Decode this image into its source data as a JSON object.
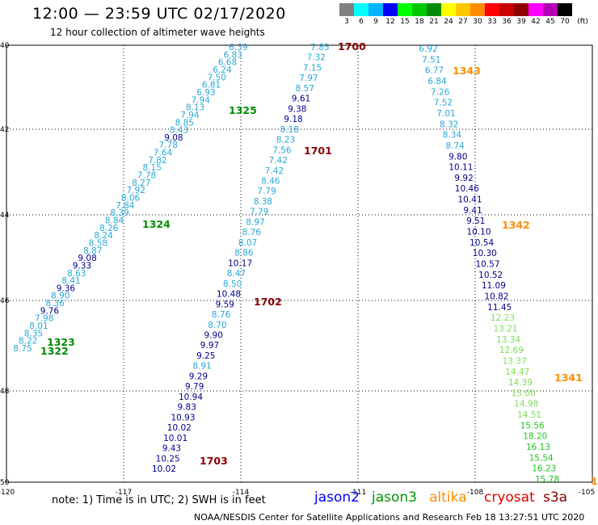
{
  "header": {
    "title": "12:00 — 23:59 UTC 02/17/2020",
    "subtitle": "12 hour collection of altimeter wave heights"
  },
  "legend": {
    "unit": "(ft)",
    "swatches": [
      {
        "label": "3",
        "color": "#808080"
      },
      {
        "label": "6",
        "color": "#00ffff"
      },
      {
        "label": "9",
        "color": "#00b4ff"
      },
      {
        "label": "12",
        "color": "#0000ff"
      },
      {
        "label": "15",
        "color": "#00ff00"
      },
      {
        "label": "18",
        "color": "#00c800"
      },
      {
        "label": "21",
        "color": "#008c00"
      },
      {
        "label": "24",
        "color": "#ffff00"
      },
      {
        "label": "27",
        "color": "#ffc800"
      },
      {
        "label": "30",
        "color": "#ff8c00"
      },
      {
        "label": "33",
        "color": "#ff0000"
      },
      {
        "label": "36",
        "color": "#c80000"
      },
      {
        "label": "39",
        "color": "#8c0000"
      },
      {
        "label": "42",
        "color": "#ff00ff"
      },
      {
        "label": "45",
        "color": "#b400b4"
      },
      {
        "label": "70",
        "color": "#000000"
      }
    ]
  },
  "map": {
    "lon_ticks": [
      "-120",
      "-117",
      "-114",
      "-111",
      "-108",
      "-105"
    ],
    "lat_ticks": [
      "40",
      "42",
      "44",
      "46",
      "48",
      "50"
    ]
  },
  "tracks": [
    {
      "points": [
        {
          "t": "6.39",
          "c": "#29a8d6"
        },
        {
          "t": "6.83",
          "c": "#29a8d6"
        },
        {
          "t": "6.68",
          "c": "#29a8d6"
        },
        {
          "t": "6.24",
          "c": "#29a8d6"
        },
        {
          "t": "7.50",
          "c": "#29a8d6"
        },
        {
          "t": "6.81",
          "c": "#29a8d6"
        },
        {
          "t": "6.93",
          "c": "#29a8d6"
        },
        {
          "t": "7.94",
          "c": "#29a8d6"
        },
        {
          "t": "8.13",
          "c": "#29a8d6"
        },
        {
          "t": "7.94",
          "c": "#29a8d6"
        },
        {
          "t": "8.85",
          "c": "#29a8d6"
        },
        {
          "t": "8.43",
          "c": "#29a8d6"
        },
        {
          "t": "9.08",
          "c": "#00008c"
        },
        {
          "t": "7.78",
          "c": "#29a8d6"
        },
        {
          "t": "7.64",
          "c": "#29a8d6"
        },
        {
          "t": "7.82",
          "c": "#29a8d6"
        },
        {
          "t": "8.15",
          "c": "#29a8d6"
        },
        {
          "t": "7.78",
          "c": "#29a8d6"
        },
        {
          "t": "8.27",
          "c": "#29a8d6"
        },
        {
          "t": "7.92",
          "c": "#29a8d6"
        },
        {
          "t": "8.06",
          "c": "#29a8d6"
        },
        {
          "t": "7.84",
          "c": "#29a8d6"
        },
        {
          "t": "8.39",
          "c": "#29a8d6"
        },
        {
          "t": "8.84",
          "c": "#29a8d6"
        },
        {
          "t": "8.26",
          "c": "#29a8d6"
        },
        {
          "t": "8.24",
          "c": "#29a8d6"
        },
        {
          "t": "8.58",
          "c": "#29a8d6"
        },
        {
          "t": "8.87",
          "c": "#29a8d6"
        },
        {
          "t": "9.08",
          "c": "#00008c"
        },
        {
          "t": "9.33",
          "c": "#00008c"
        },
        {
          "t": "8.63",
          "c": "#29a8d6"
        },
        {
          "t": "8.41",
          "c": "#29a8d6"
        },
        {
          "t": "9.36",
          "c": "#00008c"
        },
        {
          "t": "8.90",
          "c": "#29a8d6"
        },
        {
          "t": "8.36",
          "c": "#29a8d6"
        },
        {
          "t": "9.76",
          "c": "#00008c"
        },
        {
          "t": "7.98",
          "c": "#29a8d6"
        },
        {
          "t": "8.01",
          "c": "#29a8d6"
        },
        {
          "t": "8.35",
          "c": "#29a8d6"
        },
        {
          "t": "8.22",
          "c": "#29a8d6"
        },
        {
          "t": "8.75",
          "c": "#29a8d6"
        }
      ]
    },
    {
      "points": [
        {
          "t": "7.85",
          "c": "#29a8d6"
        },
        {
          "t": "7.32",
          "c": "#29a8d6"
        },
        {
          "t": "7.15",
          "c": "#29a8d6"
        },
        {
          "t": "7.97",
          "c": "#29a8d6"
        },
        {
          "t": "8.57",
          "c": "#29a8d6"
        },
        {
          "t": "9.61",
          "c": "#00008c"
        },
        {
          "t": "9.38",
          "c": "#00008c"
        },
        {
          "t": "9.18",
          "c": "#00008c"
        },
        {
          "t": "8.18",
          "c": "#29a8d6"
        },
        {
          "t": "8.23",
          "c": "#29a8d6"
        },
        {
          "t": "7.56",
          "c": "#29a8d6"
        },
        {
          "t": "7.42",
          "c": "#29a8d6"
        },
        {
          "t": "7.42",
          "c": "#29a8d6"
        },
        {
          "t": "8.46",
          "c": "#29a8d6"
        },
        {
          "t": "7.79",
          "c": "#29a8d6"
        },
        {
          "t": "8.38",
          "c": "#29a8d6"
        },
        {
          "t": "7.79",
          "c": "#29a8d6"
        },
        {
          "t": "8.97",
          "c": "#29a8d6"
        },
        {
          "t": "8.76",
          "c": "#29a8d6"
        },
        {
          "t": "8.07",
          "c": "#29a8d6"
        },
        {
          "t": "8.86",
          "c": "#29a8d6"
        },
        {
          "t": "10.17",
          "c": "#00008c"
        },
        {
          "t": "8.47",
          "c": "#29a8d6"
        },
        {
          "t": "8.50",
          "c": "#29a8d6"
        },
        {
          "t": "10.48",
          "c": "#00008c"
        },
        {
          "t": "9.59",
          "c": "#00008c"
        },
        {
          "t": "8.76",
          "c": "#29a8d6"
        },
        {
          "t": "8.70",
          "c": "#29a8d6"
        },
        {
          "t": "9.90",
          "c": "#00008c"
        },
        {
          "t": "9.97",
          "c": "#00008c"
        },
        {
          "t": "9.25",
          "c": "#00008c"
        },
        {
          "t": "8.91",
          "c": "#29a8d6"
        },
        {
          "t": "9.29",
          "c": "#00008c"
        },
        {
          "t": "9.79",
          "c": "#00008c"
        },
        {
          "t": "10.94",
          "c": "#00008c"
        },
        {
          "t": "9.83",
          "c": "#00008c"
        },
        {
          "t": "10.93",
          "c": "#00008c"
        },
        {
          "t": "10.02",
          "c": "#00008c"
        },
        {
          "t": "10.01",
          "c": "#00008c"
        },
        {
          "t": "9.43",
          "c": "#00008c"
        },
        {
          "t": "10.25",
          "c": "#00008c"
        },
        {
          "t": "10.02",
          "c": "#00008c"
        }
      ]
    },
    {
      "points": [
        {
          "t": "6.92",
          "c": "#29a8d6"
        },
        {
          "t": "7.51",
          "c": "#29a8d6"
        },
        {
          "t": "6.77",
          "c": "#29a8d6"
        },
        {
          "t": "6.84",
          "c": "#29a8d6"
        },
        {
          "t": "7.26",
          "c": "#29a8d6"
        },
        {
          "t": "7.52",
          "c": "#29a8d6"
        },
        {
          "t": "7.01",
          "c": "#29a8d6"
        },
        {
          "t": "8.32",
          "c": "#29a8d6"
        },
        {
          "t": "8.34",
          "c": "#29a8d6"
        },
        {
          "t": "8.74",
          "c": "#29a8d6"
        },
        {
          "t": "9.80",
          "c": "#00008c"
        },
        {
          "t": "10.11",
          "c": "#00008c"
        },
        {
          "t": "9.92",
          "c": "#00008c"
        },
        {
          "t": "10.46",
          "c": "#00008c"
        },
        {
          "t": "10.41",
          "c": "#00008c"
        },
        {
          "t": "9.41",
          "c": "#00008c"
        },
        {
          "t": "9.51",
          "c": "#00008c"
        },
        {
          "t": "10.10",
          "c": "#00008c"
        },
        {
          "t": "10.54",
          "c": "#00008c"
        },
        {
          "t": "10.30",
          "c": "#00008c"
        },
        {
          "t": "10.57",
          "c": "#00008c"
        },
        {
          "t": "10.52",
          "c": "#00008c"
        },
        {
          "t": "11.09",
          "c": "#00008c"
        },
        {
          "t": "10.82",
          "c": "#00008c"
        },
        {
          "t": "11.45",
          "c": "#00008c"
        },
        {
          "t": "12.23",
          "c": "#7ddc5a"
        },
        {
          "t": "13.21",
          "c": "#7ddc5a"
        },
        {
          "t": "13.34",
          "c": "#7ddc5a"
        },
        {
          "t": "12.69",
          "c": "#7ddc5a"
        },
        {
          "t": "13.37",
          "c": "#7ddc5a"
        },
        {
          "t": "14.47",
          "c": "#7ddc5a"
        },
        {
          "t": "14.39",
          "c": "#7ddc5a"
        },
        {
          "t": "15.00",
          "c": "#7ddc5a"
        },
        {
          "t": "14.98",
          "c": "#7ddc5a"
        },
        {
          "t": "14.51",
          "c": "#7ddc5a"
        },
        {
          "t": "15.56",
          "c": "#1fc21f"
        },
        {
          "t": "18.20",
          "c": "#1fc21f"
        },
        {
          "t": "16.13",
          "c": "#1fc21f"
        },
        {
          "t": "15.54",
          "c": "#1fc21f"
        },
        {
          "t": "16.23",
          "c": "#1fc21f"
        },
        {
          "t": "15.78",
          "c": "#1fc21f"
        }
      ]
    }
  ],
  "time_labels": [
    {
      "t": "1700",
      "c": "#8c0000"
    },
    {
      "t": "1343",
      "c": "#ff8c00"
    },
    {
      "t": "1325",
      "c": "#008c00"
    },
    {
      "t": "1701",
      "c": "#8c0000"
    },
    {
      "t": "1324",
      "c": "#008c00"
    },
    {
      "t": "1342",
      "c": "#ff8c00"
    },
    {
      "t": "1702",
      "c": "#8c0000"
    },
    {
      "t": "1323",
      "c": "#008c00"
    },
    {
      "t": "1322",
      "c": "#008c00"
    },
    {
      "t": "1341",
      "c": "#ff8c00"
    },
    {
      "t": "1703",
      "c": "#8c0000"
    },
    {
      "t": "1",
      "c": "#ff8c00"
    }
  ],
  "note": "note: 1) Time is in UTC; 2) SWH is in feet",
  "satellites": [
    {
      "name": "jason2",
      "color": "#0000ff"
    },
    {
      "name": "jason3",
      "color": "#009600"
    },
    {
      "name": "altika",
      "color": "#ff8c00"
    },
    {
      "name": "cryosat",
      "color": "#e00000"
    },
    {
      "name": "s3a",
      "color": "#8c0000"
    }
  ],
  "footer": "NOAA/NESDIS Center for Satellite Applications and Research   Feb 18 13:27:51 UTC 2020"
}
